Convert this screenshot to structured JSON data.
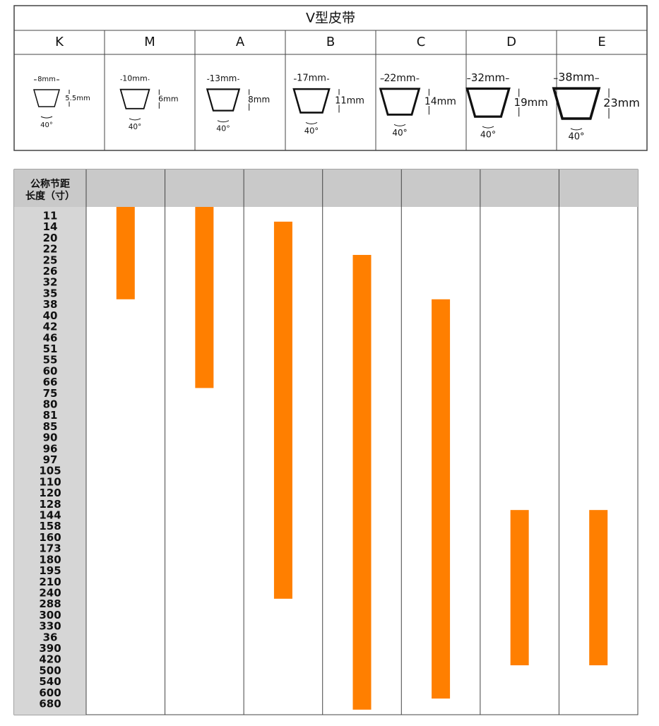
{
  "title": "V型皮带",
  "types": [
    {
      "name": "K",
      "width": "8mm",
      "height": "5.5mm",
      "angle": "40°",
      "from": "11",
      "to": "35"
    },
    {
      "name": "M",
      "width": "10mm",
      "height": "6mm",
      "angle": "40°",
      "from": "11",
      "to": "66"
    },
    {
      "name": "A",
      "width": "13mm",
      "height": "8mm",
      "angle": "40°",
      "from": "14",
      "to": "240"
    },
    {
      "name": "B",
      "width": "17mm",
      "height": "11mm",
      "angle": "40°",
      "from": "25",
      "to": "680"
    },
    {
      "name": "C",
      "width": "22mm",
      "height": "14mm",
      "angle": "40°",
      "from": "38",
      "to": "600"
    },
    {
      "name": "D",
      "width": "32mm",
      "height": "19mm",
      "angle": "40°",
      "from": "144",
      "to": "420"
    },
    {
      "name": "E",
      "width": "38mm",
      "height": "23mm",
      "angle": "40°",
      "from": "144",
      "to": "420"
    }
  ],
  "table": {
    "header": [
      "公称节距",
      "长度（寸）"
    ],
    "rows": [
      "11",
      "14",
      "20",
      "22",
      "25",
      "26",
      "32",
      "35",
      "38",
      "40",
      "42",
      "46",
      "51",
      "55",
      "60",
      "66",
      "75",
      "80",
      "81",
      "85",
      "90",
      "96",
      "97",
      "105",
      "110",
      "120",
      "128",
      "144",
      "158",
      "160",
      "173",
      "180",
      "195",
      "210",
      "240",
      "288",
      "300",
      "330",
      "36",
      "390",
      "420",
      "500",
      "540",
      "600",
      "680"
    ]
  }
}
